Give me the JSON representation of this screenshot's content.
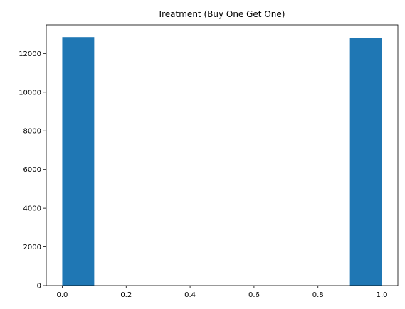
{
  "chart_data": {
    "type": "bar",
    "title": "Treatment (Buy One Get One)",
    "xlabel": "",
    "ylabel": "",
    "bars": [
      {
        "x0": 0.0,
        "x1": 0.1,
        "value": 12850
      },
      {
        "x0": 0.9,
        "x1": 1.0,
        "value": 12790
      }
    ],
    "xlim": [
      -0.05,
      1.05
    ],
    "ylim": [
      0,
      13482.5
    ],
    "xticks": [
      0.0,
      0.2,
      0.4,
      0.6,
      0.8,
      1.0
    ],
    "xtick_labels": [
      "0.0",
      "0.2",
      "0.4",
      "0.6",
      "0.8",
      "1.0"
    ],
    "yticks": [
      0,
      2000,
      4000,
      6000,
      8000,
      10000,
      12000
    ],
    "ytick_labels": [
      "0",
      "2000",
      "4000",
      "6000",
      "8000",
      "10000",
      "12000"
    ],
    "grid": false,
    "legend": "none",
    "colors": {
      "bar": "#1f77b4",
      "axes": "#000000",
      "background": "#ffffff"
    }
  }
}
